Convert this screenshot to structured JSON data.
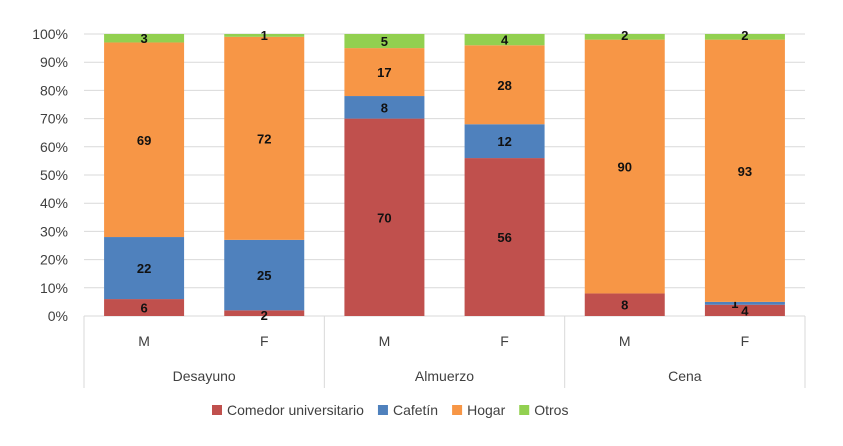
{
  "chart_data": {
    "type": "bar",
    "stacked": true,
    "percent": true,
    "title": "",
    "xlabel": "",
    "ylabel": "",
    "ylim": [
      0,
      100
    ],
    "yticks": [
      "0%",
      "10%",
      "20%",
      "30%",
      "40%",
      "50%",
      "60%",
      "70%",
      "80%",
      "90%",
      "100%"
    ],
    "groups": [
      "Desayuno",
      "Almuerzo",
      "Cena"
    ],
    "categories": [
      "M",
      "F",
      "M",
      "F",
      "M",
      "F"
    ],
    "series": [
      {
        "name": "Comedor universitario",
        "color": "#C0504D",
        "values": [
          6,
          2,
          70,
          56,
          8,
          4
        ]
      },
      {
        "name": "Cafetín",
        "color": "#4F81BD",
        "values": [
          22,
          25,
          8,
          12,
          0,
          1
        ]
      },
      {
        "name": "Hogar",
        "color": "#F79646",
        "values": [
          69,
          72,
          17,
          28,
          90,
          93
        ]
      },
      {
        "name": "Otros",
        "color": "#92D050",
        "values": [
          3,
          1,
          5,
          4,
          2,
          2
        ]
      }
    ],
    "grid": true,
    "legend_position": "bottom"
  }
}
